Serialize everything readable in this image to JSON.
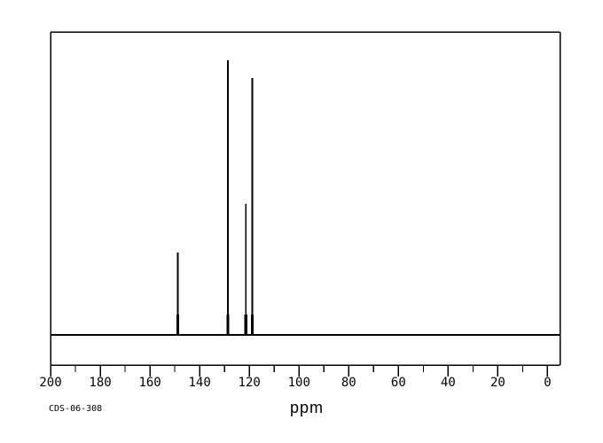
{
  "figure": {
    "background_color": "#ffffff",
    "line_color": "#000000"
  },
  "chart_data": {
    "type": "line",
    "subtype": "nmr-spectrum",
    "title": "",
    "xlabel": "ppm",
    "annotation": "CDS-06-308",
    "x_axis": {
      "min": -5,
      "max": 200,
      "direction": "reversed",
      "major_tick_step": 20,
      "minor_tick_step": 10,
      "grid": false
    },
    "x_tick_labels": [
      "200",
      "180",
      "160",
      "140",
      "120",
      "100",
      "80",
      "60",
      "40",
      "20",
      "0"
    ],
    "peaks": [
      {
        "ppm": 148.8,
        "intensity": 0.3
      },
      {
        "ppm": 128.6,
        "intensity": 1.0
      },
      {
        "ppm": 121.4,
        "intensity": 0.477
      },
      {
        "ppm": 118.8,
        "intensity": 0.936
      }
    ],
    "baseline_intensity": 0,
    "legend_position": "none"
  }
}
